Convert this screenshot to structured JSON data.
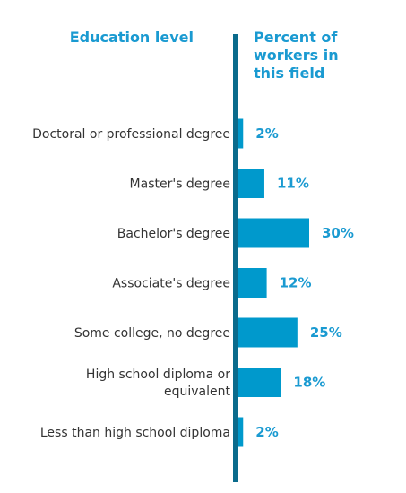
{
  "headers": {
    "left": "Education level",
    "right": "Percent of workers in this field"
  },
  "colors": {
    "bar": "#0099cc",
    "axis": "#0a6b8c",
    "accent_text": "#1a9ad1",
    "label_text": "#333333"
  },
  "chart_data": {
    "type": "bar",
    "orientation": "horizontal",
    "categories": [
      "Doctoral or professional degree",
      "Master's degree",
      "Bachelor's degree",
      "Associate's degree",
      "Some college, no degree",
      "High school diploma or equivalent",
      "Less than high school diploma"
    ],
    "category_display_lines": [
      [
        "Doctoral or professional degree"
      ],
      [
        "Master's degree"
      ],
      [
        "Bachelor's degree"
      ],
      [
        "Associate's degree"
      ],
      [
        "Some college, no degree"
      ],
      [
        "High school diploma or",
        "equivalent"
      ],
      [
        "Less than high school diploma"
      ]
    ],
    "values": [
      2,
      11,
      30,
      12,
      25,
      18,
      2
    ],
    "value_labels": [
      "2%",
      "11%",
      "30%",
      "12%",
      "25%",
      "18%",
      "2%"
    ],
    "title": "",
    "xlabel": "Percent of workers in this field",
    "ylabel": "Education level",
    "xlim": [
      0,
      30
    ],
    "grid": false,
    "legend": "none"
  }
}
